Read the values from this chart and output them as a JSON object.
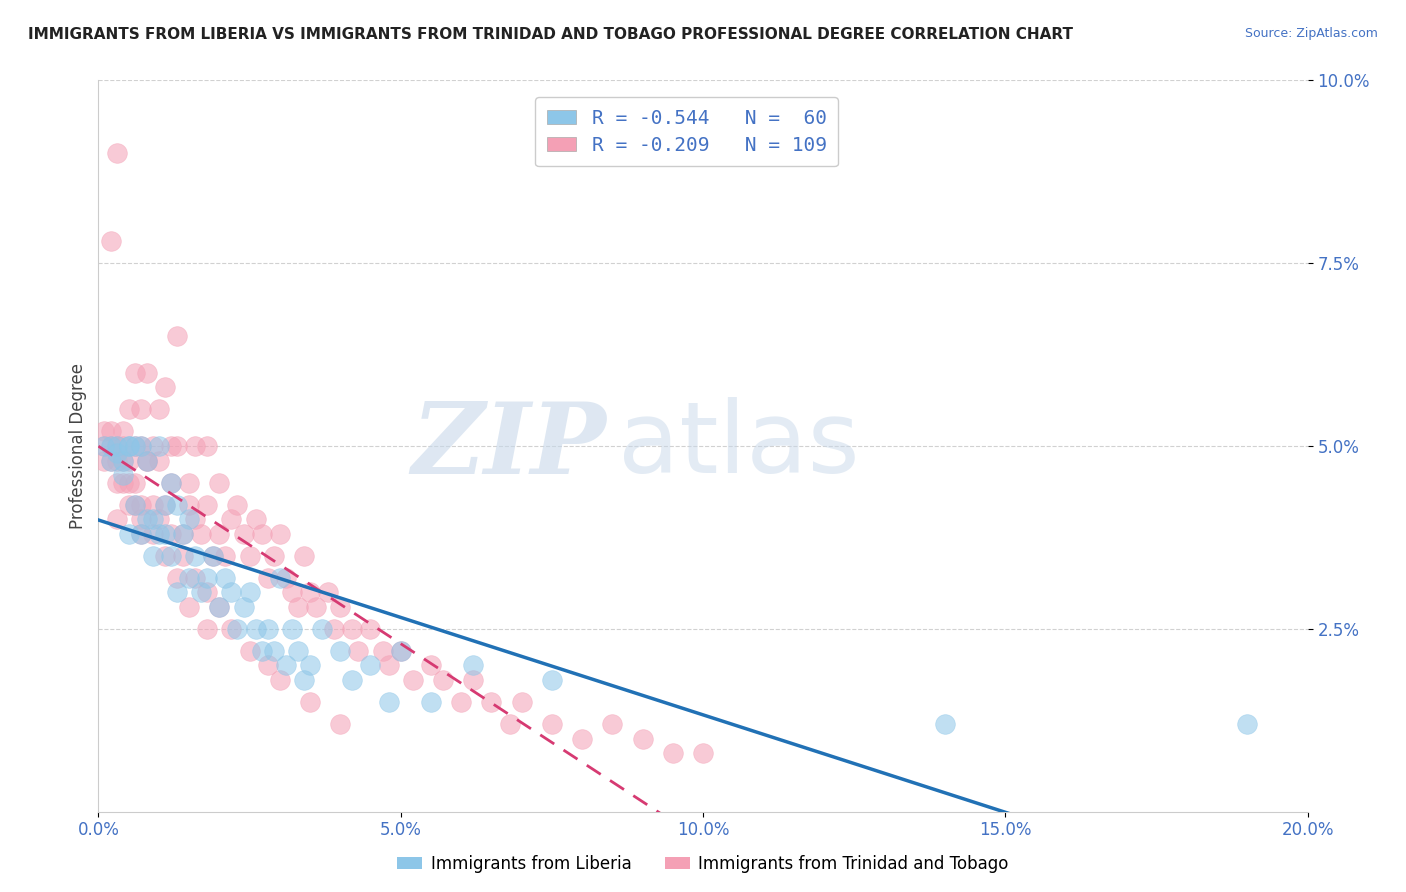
{
  "title": "IMMIGRANTS FROM LIBERIA VS IMMIGRANTS FROM TRINIDAD AND TOBAGO PROFESSIONAL DEGREE CORRELATION CHART",
  "source": "Source: ZipAtlas.com",
  "ylabel": "Professional Degree",
  "xlabel": "",
  "xlim": [
    0.0,
    0.2
  ],
  "ylim": [
    0.0,
    0.1
  ],
  "xtick_labels": [
    "0.0%",
    "5.0%",
    "10.0%",
    "15.0%",
    "20.0%"
  ],
  "xtick_vals": [
    0.0,
    0.05,
    0.1,
    0.15,
    0.2
  ],
  "ytick_labels": [
    "2.5%",
    "5.0%",
    "7.5%",
    "10.0%"
  ],
  "ytick_vals": [
    0.025,
    0.05,
    0.075,
    0.1
  ],
  "legend1_label": "R = -0.544   N =  60",
  "legend2_label": "R = -0.209   N = 109",
  "blue_color": "#8dc6e8",
  "pink_color": "#f4a0b5",
  "blue_line_color": "#2171b5",
  "pink_line_color": "#d63a72",
  "pink_line_dash": [
    6,
    4
  ],
  "watermark_zip": "ZIP",
  "watermark_atlas": "atlas",
  "liberia_x": [
    0.001,
    0.002,
    0.002,
    0.003,
    0.003,
    0.004,
    0.004,
    0.005,
    0.005,
    0.005,
    0.006,
    0.006,
    0.007,
    0.007,
    0.008,
    0.008,
    0.009,
    0.009,
    0.01,
    0.01,
    0.011,
    0.011,
    0.012,
    0.012,
    0.013,
    0.013,
    0.014,
    0.015,
    0.015,
    0.016,
    0.017,
    0.018,
    0.019,
    0.02,
    0.021,
    0.022,
    0.023,
    0.024,
    0.025,
    0.026,
    0.027,
    0.028,
    0.029,
    0.03,
    0.031,
    0.032,
    0.033,
    0.034,
    0.035,
    0.037,
    0.04,
    0.042,
    0.045,
    0.048,
    0.05,
    0.055,
    0.062,
    0.075,
    0.14,
    0.19
  ],
  "liberia_y": [
    0.05,
    0.05,
    0.048,
    0.05,
    0.049,
    0.046,
    0.048,
    0.038,
    0.05,
    0.05,
    0.042,
    0.05,
    0.038,
    0.05,
    0.04,
    0.048,
    0.035,
    0.04,
    0.038,
    0.05,
    0.042,
    0.038,
    0.035,
    0.045,
    0.042,
    0.03,
    0.038,
    0.032,
    0.04,
    0.035,
    0.03,
    0.032,
    0.035,
    0.028,
    0.032,
    0.03,
    0.025,
    0.028,
    0.03,
    0.025,
    0.022,
    0.025,
    0.022,
    0.032,
    0.02,
    0.025,
    0.022,
    0.018,
    0.02,
    0.025,
    0.022,
    0.018,
    0.02,
    0.015,
    0.022,
    0.015,
    0.02,
    0.018,
    0.012,
    0.012
  ],
  "tt_x": [
    0.001,
    0.001,
    0.001,
    0.002,
    0.002,
    0.002,
    0.003,
    0.003,
    0.003,
    0.004,
    0.004,
    0.004,
    0.005,
    0.005,
    0.005,
    0.006,
    0.006,
    0.006,
    0.007,
    0.007,
    0.007,
    0.008,
    0.008,
    0.009,
    0.009,
    0.01,
    0.01,
    0.011,
    0.011,
    0.012,
    0.012,
    0.013,
    0.013,
    0.014,
    0.015,
    0.015,
    0.016,
    0.016,
    0.017,
    0.018,
    0.018,
    0.019,
    0.02,
    0.02,
    0.021,
    0.022,
    0.023,
    0.024,
    0.025,
    0.026,
    0.027,
    0.028,
    0.029,
    0.03,
    0.031,
    0.032,
    0.033,
    0.034,
    0.035,
    0.036,
    0.038,
    0.039,
    0.04,
    0.042,
    0.043,
    0.045,
    0.047,
    0.048,
    0.05,
    0.052,
    0.055,
    0.057,
    0.06,
    0.062,
    0.065,
    0.068,
    0.07,
    0.075,
    0.08,
    0.085,
    0.09,
    0.095,
    0.1,
    0.003,
    0.004,
    0.006,
    0.007,
    0.008,
    0.01,
    0.012,
    0.014,
    0.016,
    0.018,
    0.02,
    0.022,
    0.025,
    0.028,
    0.03,
    0.035,
    0.04,
    0.002,
    0.003,
    0.005,
    0.007,
    0.009,
    0.011,
    0.013,
    0.015,
    0.018
  ],
  "tt_y": [
    0.05,
    0.048,
    0.052,
    0.05,
    0.048,
    0.078,
    0.05,
    0.045,
    0.09,
    0.052,
    0.048,
    0.05,
    0.055,
    0.042,
    0.048,
    0.06,
    0.045,
    0.05,
    0.055,
    0.04,
    0.05,
    0.048,
    0.06,
    0.042,
    0.05,
    0.055,
    0.048,
    0.058,
    0.042,
    0.05,
    0.045,
    0.05,
    0.065,
    0.038,
    0.042,
    0.045,
    0.04,
    0.05,
    0.038,
    0.042,
    0.05,
    0.035,
    0.045,
    0.038,
    0.035,
    0.04,
    0.042,
    0.038,
    0.035,
    0.04,
    0.038,
    0.032,
    0.035,
    0.038,
    0.032,
    0.03,
    0.028,
    0.035,
    0.03,
    0.028,
    0.03,
    0.025,
    0.028,
    0.025,
    0.022,
    0.025,
    0.022,
    0.02,
    0.022,
    0.018,
    0.02,
    0.018,
    0.015,
    0.018,
    0.015,
    0.012,
    0.015,
    0.012,
    0.01,
    0.012,
    0.01,
    0.008,
    0.008,
    0.04,
    0.045,
    0.042,
    0.038,
    0.048,
    0.04,
    0.038,
    0.035,
    0.032,
    0.03,
    0.028,
    0.025,
    0.022,
    0.02,
    0.018,
    0.015,
    0.012,
    0.052,
    0.048,
    0.045,
    0.042,
    0.038,
    0.035,
    0.032,
    0.028,
    0.025
  ]
}
